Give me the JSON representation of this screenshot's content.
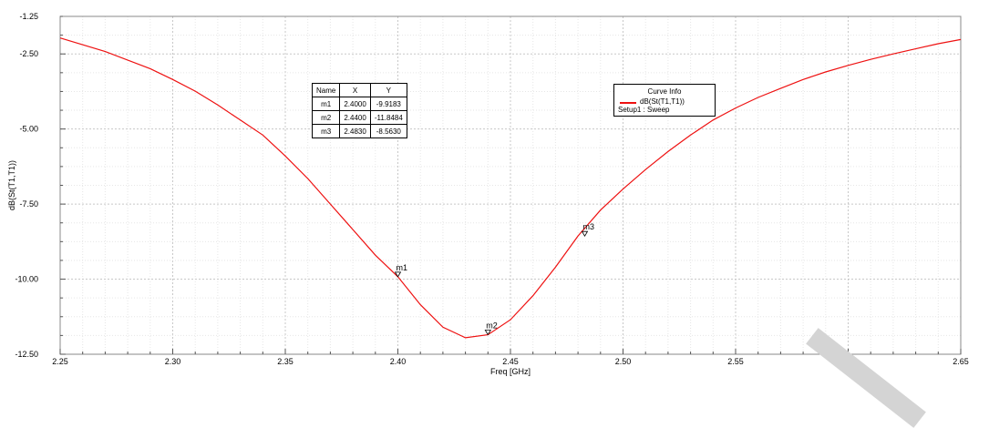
{
  "chart_data": {
    "type": "line",
    "xlabel": "Freq [GHz]",
    "ylabel": "dB(St(T1,T1))",
    "xlim": [
      2.25,
      2.65
    ],
    "ylim": [
      -12.5,
      -1.25
    ],
    "x_ticks": [
      "2.25",
      "2.30",
      "2.35",
      "2.40",
      "2.45",
      "2.50",
      "2.55",
      "2.60",
      "2.65"
    ],
    "y_ticks": [
      "-1.25",
      "-2.50",
      "-5.00",
      "-7.50",
      "-10.00",
      "-12.50"
    ],
    "x_tick_values": [
      2.25,
      2.3,
      2.35,
      2.4,
      2.45,
      2.5,
      2.55,
      2.6,
      2.65
    ],
    "y_tick_values": [
      -1.25,
      -2.5,
      -5.0,
      -7.5,
      -10.0,
      -12.5
    ],
    "grid": true,
    "series": [
      {
        "name": "dB(St(T1,T1))",
        "color": "#ee1111",
        "x": [
          2.25,
          2.27,
          2.29,
          2.3,
          2.31,
          2.32,
          2.33,
          2.34,
          2.35,
          2.36,
          2.37,
          2.38,
          2.39,
          2.4,
          2.41,
          2.42,
          2.43,
          2.44,
          2.45,
          2.46,
          2.47,
          2.48,
          2.49,
          2.5,
          2.51,
          2.52,
          2.53,
          2.54,
          2.55,
          2.56,
          2.57,
          2.58,
          2.59,
          2.6,
          2.61,
          2.62,
          2.63,
          2.64,
          2.65
        ],
        "y": [
          -1.97,
          -2.42,
          -2.99,
          -3.35,
          -3.74,
          -4.2,
          -4.7,
          -5.2,
          -5.9,
          -6.65,
          -7.5,
          -8.35,
          -9.2,
          -9.92,
          -10.85,
          -11.6,
          -11.95,
          -11.85,
          -11.35,
          -10.55,
          -9.6,
          -8.56,
          -7.7,
          -7.0,
          -6.35,
          -5.75,
          -5.2,
          -4.7,
          -4.3,
          -3.95,
          -3.65,
          -3.35,
          -3.1,
          -2.88,
          -2.68,
          -2.5,
          -2.33,
          -2.16,
          -2.02
        ]
      }
    ],
    "markers": [
      {
        "name": "m1",
        "x": 2.4,
        "y": -9.9183
      },
      {
        "name": "m2",
        "x": 2.44,
        "y": -11.8484
      },
      {
        "name": "m3",
        "x": 2.483,
        "y": -8.563
      }
    ],
    "marker_table": {
      "headers": [
        "Name",
        "X",
        "Y"
      ],
      "rows": [
        [
          "m1",
          "2.4000",
          "-9.9183"
        ],
        [
          "m2",
          "2.4400",
          "-11.8484"
        ],
        [
          "m3",
          "2.4830",
          "-8.5630"
        ]
      ]
    },
    "legend": {
      "title": "Curve Info",
      "series_label": "dB(St(T1,T1))",
      "subtitle": "Setup1 : Sweep",
      "placement": "top-center-right"
    }
  }
}
